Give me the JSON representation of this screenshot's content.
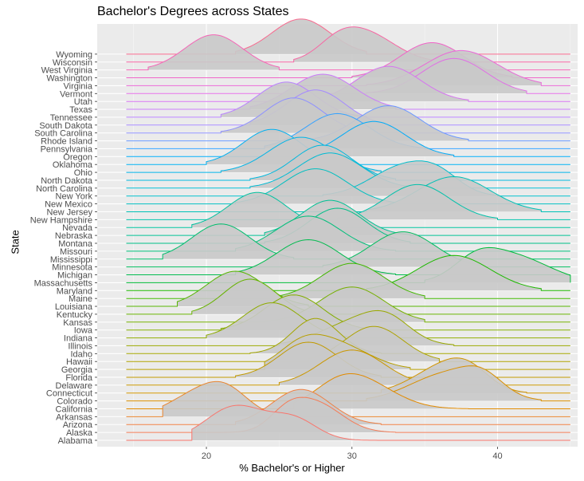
{
  "chart_data": {
    "type": "ridgeline",
    "title": "Bachelor's Degrees across States",
    "xlabel": "% Bachelor's or Higher",
    "ylabel": "State",
    "xlim": [
      12.5,
      45.5
    ],
    "xticks": [
      20,
      30,
      40
    ],
    "grid": true,
    "legend": "none",
    "series": [
      {
        "name": "Alabama",
        "color": "#F8766D",
        "peaks": [
          [
            22,
            1.0,
            2.0
          ],
          [
            26,
            0.6,
            1.6
          ]
        ],
        "range": [
          19,
          32
        ]
      },
      {
        "name": "Alaska",
        "color": "#F47C57",
        "peaks": [
          [
            27.5,
            1.0,
            1.8
          ],
          [
            25.5,
            0.5,
            1.2
          ]
        ],
        "range": [
          21,
          33
        ]
      },
      {
        "name": "Arizona",
        "color": "#EE8043",
        "peaks": [
          [
            26.5,
            1.0,
            2.0
          ]
        ],
        "range": [
          22,
          32
        ]
      },
      {
        "name": "Arkansas",
        "color": "#E8852F",
        "peaks": [
          [
            19.5,
            1.0,
            2.0
          ],
          [
            21.5,
            0.8,
            1.5
          ]
        ],
        "range": [
          17,
          25
        ]
      },
      {
        "name": "California",
        "color": "#E18A00",
        "peaks": [
          [
            31,
            1.0,
            2.2
          ],
          [
            29,
            0.8,
            1.8
          ]
        ],
        "range": [
          26,
          38
        ]
      },
      {
        "name": "Colorado",
        "color": "#D98F00",
        "peaks": [
          [
            36.5,
            1.0,
            2.5
          ],
          [
            39,
            0.6,
            1.4
          ]
        ],
        "range": [
          31,
          43
        ]
      },
      {
        "name": "Connecticut",
        "color": "#D29400",
        "peaks": [
          [
            36,
            1.0,
            2.0
          ],
          [
            38,
            0.8,
            1.5
          ]
        ],
        "range": [
          32,
          42
        ]
      },
      {
        "name": "Delaware",
        "color": "#CA9700",
        "peaks": [
          [
            30,
            1.0,
            2.2
          ]
        ],
        "range": [
          25,
          35
        ]
      },
      {
        "name": "Florida",
        "color": "#C19A00",
        "peaks": [
          [
            27,
            1.0,
            2.0
          ]
        ],
        "range": [
          22,
          32
        ]
      },
      {
        "name": "Georgia",
        "color": "#B79F00",
        "peaks": [
          [
            29,
            1.0,
            2.2
          ],
          [
            26.5,
            0.8,
            1.6
          ]
        ],
        "range": [
          24,
          34
        ]
      },
      {
        "name": "Hawaii",
        "color": "#ADA200",
        "peaks": [
          [
            31.5,
            1.0,
            2.0
          ]
        ],
        "range": [
          27,
          36
        ]
      },
      {
        "name": "Idaho",
        "color": "#A3A500",
        "peaks": [
          [
            27.5,
            1.0,
            1.6
          ]
        ],
        "range": [
          23,
          32
        ]
      },
      {
        "name": "Illinois",
        "color": "#99A800",
        "peaks": [
          [
            30.5,
            1.0,
            2.5
          ],
          [
            32.5,
            0.6,
            1.5
          ]
        ],
        "range": [
          25,
          37
        ]
      },
      {
        "name": "Indiana",
        "color": "#8EAB00",
        "peaks": [
          [
            24.5,
            1.0,
            2.0
          ]
        ],
        "range": [
          20,
          30
        ]
      },
      {
        "name": "Iowa",
        "color": "#82AD00",
        "peaks": [
          [
            26,
            1.0,
            2.0
          ]
        ],
        "range": [
          21,
          31
        ]
      },
      {
        "name": "Kansas",
        "color": "#75AF00",
        "peaks": [
          [
            30,
            1.0,
            2.2
          ]
        ],
        "range": [
          24,
          35
        ]
      },
      {
        "name": "Kentucky",
        "color": "#67B200",
        "peaks": [
          [
            23,
            1.0,
            1.8
          ]
        ],
        "range": [
          19,
          28
        ]
      },
      {
        "name": "Louisiana",
        "color": "#56B400",
        "peaks": [
          [
            22,
            1.0,
            2.0
          ]
        ],
        "range": [
          18,
          27
        ]
      },
      {
        "name": "Maine",
        "color": "#42B600",
        "peaks": [
          [
            30,
            1.0,
            2.2
          ]
        ],
        "range": [
          25,
          35
        ]
      },
      {
        "name": "Maryland",
        "color": "#1DB800",
        "peaks": [
          [
            37,
            1.0,
            2.5
          ]
        ],
        "range": [
          31,
          43
        ]
      },
      {
        "name": "Massachusetts",
        "color": "#00BA38",
        "peaks": [
          [
            41,
            1.0,
            2.5
          ],
          [
            38.5,
            0.6,
            1.5
          ]
        ],
        "range": [
          35,
          45
        ]
      },
      {
        "name": "Michigan",
        "color": "#00BB4E",
        "peaks": [
          [
            27,
            1.0,
            2.2
          ]
        ],
        "range": [
          22,
          33
        ]
      },
      {
        "name": "Minnesota",
        "color": "#00BC5E",
        "peaks": [
          [
            33.5,
            1.0,
            2.2
          ]
        ],
        "range": [
          28,
          39
        ]
      },
      {
        "name": "Mississippi",
        "color": "#00BD6D",
        "peaks": [
          [
            21,
            1.0,
            2.0
          ]
        ],
        "range": [
          17,
          26
        ]
      },
      {
        "name": "Missouri",
        "color": "#00BE7A",
        "peaks": [
          [
            27,
            1.0,
            2.2
          ]
        ],
        "range": [
          22,
          33
        ]
      },
      {
        "name": "Montana",
        "color": "#00BF87",
        "peaks": [
          [
            29,
            1.0,
            2.0
          ]
        ],
        "range": [
          24,
          34
        ]
      },
      {
        "name": "Nebraska",
        "color": "#00C093",
        "peaks": [
          [
            28.5,
            1.0,
            2.0
          ]
        ],
        "range": [
          24,
          34
        ]
      },
      {
        "name": "Nevada",
        "color": "#00C19F",
        "peaks": [
          [
            23.5,
            1.0,
            2.0
          ]
        ],
        "range": [
          19,
          29
        ]
      },
      {
        "name": "New Hampshire",
        "color": "#00C1AA",
        "peaks": [
          [
            34.5,
            1.0,
            2.2
          ]
        ],
        "range": [
          29,
          40
        ]
      },
      {
        "name": "New Jersey",
        "color": "#00C0B5",
        "peaks": [
          [
            37,
            1.0,
            2.5
          ]
        ],
        "range": [
          31,
          43
        ]
      },
      {
        "name": "New Mexico",
        "color": "#00BFC0",
        "peaks": [
          [
            27.5,
            1.0,
            2.2
          ]
        ],
        "range": [
          22,
          33
        ]
      },
      {
        "name": "New York",
        "color": "#00BDCA",
        "peaks": [
          [
            33.5,
            1.0,
            2.2
          ],
          [
            36,
            0.5,
            1.5
          ]
        ],
        "range": [
          28,
          40
        ]
      },
      {
        "name": "North Carolina",
        "color": "#00BBD4",
        "peaks": [
          [
            28.5,
            1.0,
            2.2
          ]
        ],
        "range": [
          23,
          34
        ]
      },
      {
        "name": "North Dakota",
        "color": "#00B8DE",
        "peaks": [
          [
            28,
            1.0,
            2.0
          ]
        ],
        "range": [
          23,
          33
        ]
      },
      {
        "name": "Ohio",
        "color": "#00B4E7",
        "peaks": [
          [
            26.5,
            1.0,
            2.2
          ]
        ],
        "range": [
          21,
          32
        ]
      },
      {
        "name": "Oklahoma",
        "color": "#00B0F0",
        "peaks": [
          [
            24.5,
            1.0,
            2.0
          ]
        ],
        "range": [
          20,
          30
        ]
      },
      {
        "name": "Oregon",
        "color": "#00ABF8",
        "peaks": [
          [
            31.5,
            1.0,
            2.2
          ]
        ],
        "range": [
          26,
          37
        ]
      },
      {
        "name": "Pennsylvania",
        "color": "#35A2FF",
        "peaks": [
          [
            29,
            1.0,
            2.2
          ]
        ],
        "range": [
          24,
          35
        ]
      },
      {
        "name": "Rhode Island",
        "color": "#6B99FF",
        "peaks": [
          [
            32.5,
            1.0,
            2.2
          ]
        ],
        "range": [
          27,
          38
        ]
      },
      {
        "name": "South Carolina",
        "color": "#8F91FF",
        "peaks": [
          [
            26,
            1.0,
            2.0
          ]
        ],
        "range": [
          21,
          31
        ]
      },
      {
        "name": "South Dakota",
        "color": "#A58AFF",
        "peaks": [
          [
            27.5,
            1.0,
            2.0
          ]
        ],
        "range": [
          23,
          32
        ]
      },
      {
        "name": "Tennessee",
        "color": "#B983FF",
        "peaks": [
          [
            25.5,
            1.0,
            2.0
          ]
        ],
        "range": [
          21,
          31
        ]
      },
      {
        "name": "Texas",
        "color": "#CA7DF9",
        "peaks": [
          [
            28,
            1.0,
            2.2
          ]
        ],
        "range": [
          23,
          33
        ]
      },
      {
        "name": "Utah",
        "color": "#D675F0",
        "peaks": [
          [
            32.5,
            1.0,
            2.2
          ]
        ],
        "range": [
          27,
          38
        ]
      },
      {
        "name": "Vermont",
        "color": "#E16EE6",
        "peaks": [
          [
            37,
            1.0,
            2.2
          ]
        ],
        "range": [
          31,
          42
        ]
      },
      {
        "name": "Virginia",
        "color": "#EA69D8",
        "peaks": [
          [
            37.5,
            1.0,
            2.5
          ]
        ],
        "range": [
          31,
          43
        ]
      },
      {
        "name": "Washington",
        "color": "#F065C8",
        "peaks": [
          [
            35.5,
            1.0,
            2.2
          ]
        ],
        "range": [
          30,
          41
        ]
      },
      {
        "name": "West Virginia",
        "color": "#F565B6",
        "peaks": [
          [
            20.5,
            1.0,
            2.0
          ]
        ],
        "range": [
          16,
          25
        ]
      },
      {
        "name": "Wisconsin",
        "color": "#F766A3",
        "peaks": [
          [
            31,
            1.0,
            2.0
          ],
          [
            29,
            0.5,
            1.4
          ]
        ],
        "range": [
          26,
          36
        ]
      },
      {
        "name": "Wyoming",
        "color": "#F8698E",
        "peaks": [
          [
            26.5,
            1.0,
            2.0
          ]
        ],
        "range": [
          22,
          31
        ]
      }
    ]
  }
}
